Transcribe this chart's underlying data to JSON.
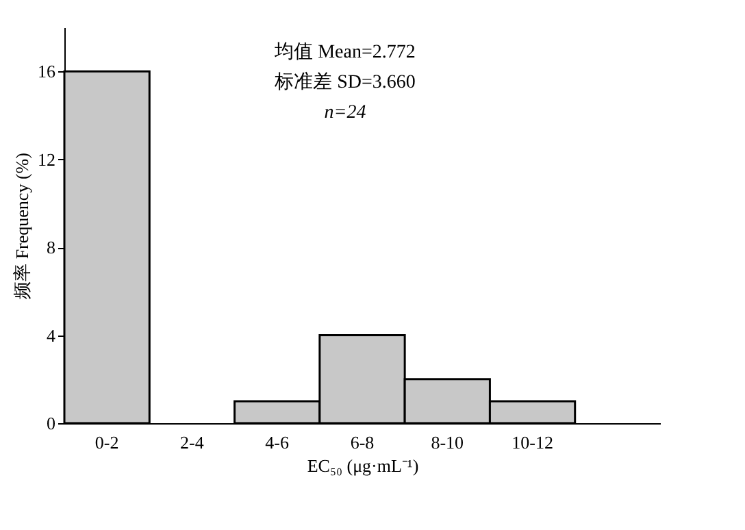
{
  "chart_data": {
    "type": "bar",
    "categories": [
      "0-2",
      "2-4",
      "4-6",
      "6-8",
      "8-10",
      "10-12",
      null
    ],
    "values": [
      16,
      null,
      1,
      4,
      2,
      1,
      null
    ],
    "color": "#c8c8c8",
    "xlabel": "EC₅₀ (μg·mL⁻¹)",
    "ylabel": "频率 Frequency (%)",
    "ylim": [
      0,
      18
    ],
    "yticks": [
      0,
      4,
      8,
      12,
      16
    ],
    "grid": false,
    "annotations": [
      "均值 Mean=2.772",
      "标准差 SD=3.660",
      "n=24"
    ]
  }
}
